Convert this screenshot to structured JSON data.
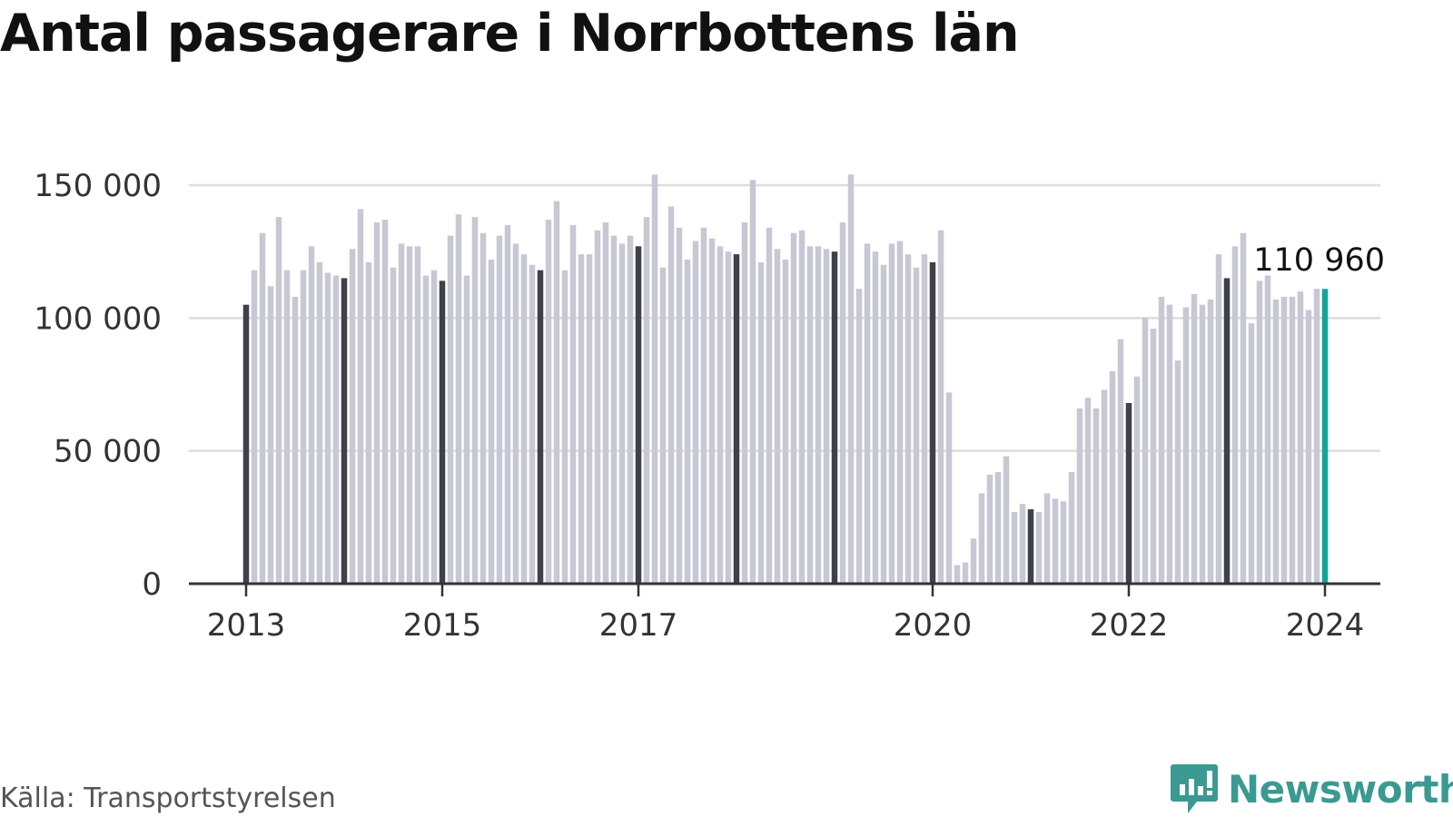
{
  "title": "Antal passagerare i Norrbottens län",
  "source": "Källa: Transportstyrelsen",
  "brand": "Newsworthy",
  "colors": {
    "bar": "#c8c8d4",
    "bar_january": "#40404c",
    "bar_latest": "#14a59a",
    "grid": "#dddddd",
    "axis": "#333333",
    "brand": "#3a9a92"
  },
  "chart_data": {
    "type": "bar",
    "title": "Antal passagerare i Norrbottens län",
    "xlabel": "",
    "ylabel": "",
    "ylim": [
      0,
      150000
    ],
    "grid": true,
    "y_ticks": [
      0,
      50000,
      100000,
      150000
    ],
    "y_tick_labels": [
      "0",
      "50 000",
      "100 000",
      "150 000"
    ],
    "x_ticks": [
      "2013-01",
      "2015-01",
      "2017-01",
      "2020-01",
      "2022-01",
      "2024-01"
    ],
    "x_tick_labels": [
      "2013",
      "2015",
      "2017",
      "2020",
      "2022",
      "2024"
    ],
    "annotation": {
      "x": "2024-01",
      "label": "110 960"
    },
    "start_year": 2013,
    "start_month": 1,
    "values": [
      105000,
      118000,
      132000,
      112000,
      138000,
      118000,
      108000,
      118000,
      127000,
      121000,
      117000,
      116000,
      115000,
      126000,
      141000,
      121000,
      136000,
      137000,
      119000,
      128000,
      127000,
      127000,
      116000,
      118000,
      114000,
      131000,
      139000,
      116000,
      138000,
      132000,
      122000,
      131000,
      135000,
      128000,
      124000,
      120000,
      118000,
      137000,
      144000,
      118000,
      135000,
      124000,
      124000,
      133000,
      136000,
      131000,
      128000,
      131000,
      127000,
      138000,
      154000,
      119000,
      142000,
      134000,
      122000,
      129000,
      134000,
      130000,
      127000,
      125000,
      124000,
      136000,
      152000,
      121000,
      134000,
      126000,
      122000,
      132000,
      133000,
      127000,
      127000,
      126000,
      125000,
      136000,
      154000,
      111000,
      128000,
      125000,
      120000,
      128000,
      129000,
      124000,
      119000,
      124000,
      121000,
      133000,
      72000,
      7000,
      8000,
      17000,
      34000,
      41000,
      42000,
      48000,
      27000,
      30000,
      28000,
      27000,
      34000,
      32000,
      31000,
      42000,
      66000,
      70000,
      66000,
      73000,
      80000,
      92000,
      68000,
      78000,
      100000,
      96000,
      108000,
      105000,
      84000,
      104000,
      109000,
      105000,
      107000,
      124000,
      115000,
      127000,
      132000,
      98000,
      114000,
      116000,
      107000,
      108000,
      108000,
      110000,
      103000,
      111000,
      110960
    ]
  }
}
